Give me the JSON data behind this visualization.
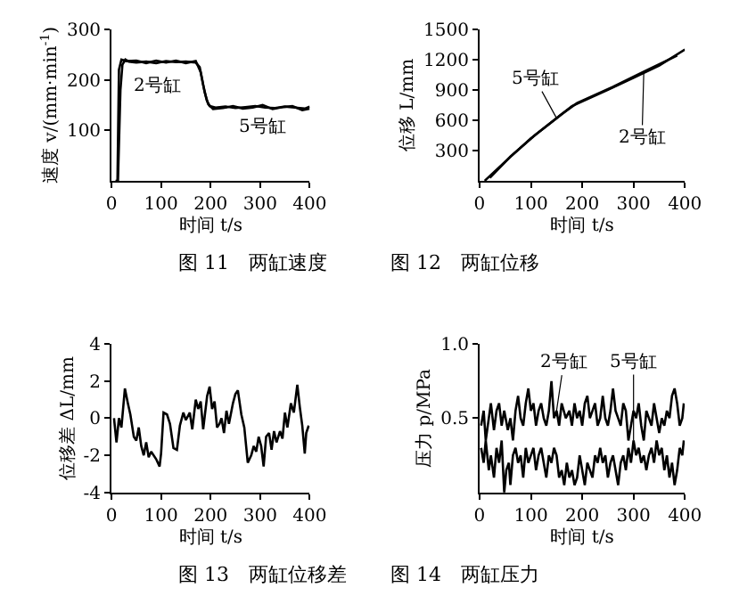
{
  "chart_data": [
    {
      "type": "line",
      "title": "图 11　两缸速度",
      "xlabel": "时间 t/s",
      "ylabel": "速度 v/(mm·min$^{-1}$)",
      "xlim": [
        0,
        400
      ],
      "xticks": [
        0,
        100,
        200,
        300,
        400
      ],
      "ylim": [
        0,
        300
      ],
      "yticks": [
        100,
        200,
        300
      ],
      "grid": false,
      "series": [
        {
          "name": "2号缸",
          "color": "#000000",
          "x": [
            10,
            13,
            18,
            22,
            28,
            35,
            50,
            70,
            90,
            110,
            130,
            150,
            170,
            178,
            185,
            192,
            198,
            210,
            230,
            250,
            270,
            290,
            310,
            330,
            350,
            370,
            390,
            400
          ],
          "values": [
            0,
            0,
            180,
            230,
            240,
            236,
            234,
            236,
            233,
            237,
            235,
            236,
            234,
            225,
            190,
            160,
            148,
            145,
            147,
            144,
            146,
            148,
            145,
            144,
            147,
            145,
            143,
            147
          ]
        },
        {
          "name": "5号缸",
          "color": "#000000",
          "x": [
            8,
            12,
            15,
            20,
            30,
            50,
            70,
            90,
            110,
            130,
            150,
            170,
            180,
            188,
            195,
            205,
            225,
            245,
            265,
            285,
            305,
            325,
            345,
            365,
            385,
            400
          ],
          "values": [
            0,
            0,
            220,
            240,
            237,
            238,
            233,
            238,
            234,
            238,
            233,
            237,
            215,
            175,
            152,
            142,
            144,
            148,
            143,
            145,
            150,
            142,
            146,
            148,
            140,
            143
          ]
        }
      ]
    },
    {
      "type": "line",
      "title": "图 12　两缸位移",
      "xlabel": "时间 t/s",
      "ylabel": "位移 L/mm",
      "xlim": [
        0,
        400
      ],
      "xticks": [
        0,
        100,
        200,
        300,
        400
      ],
      "ylim": [
        0,
        1500
      ],
      "yticks": [
        300,
        600,
        900,
        1200,
        1500
      ],
      "grid": false,
      "series": [
        {
          "name": "5号缸",
          "color": "#000000",
          "x": [
            10,
            50,
            100,
            150,
            180,
            250,
            300,
            350,
            400
          ],
          "values": [
            0,
            190,
            420,
            620,
            740,
            900,
            1020,
            1140,
            1300
          ]
        },
        {
          "name": "2号缸",
          "color": "#000000",
          "x": [
            20,
            60,
            110,
            160,
            190,
            260,
            320,
            385
          ],
          "values": [
            30,
            240,
            460,
            660,
            770,
            930,
            1080,
            1240
          ]
        }
      ]
    },
    {
      "type": "line",
      "title": "图 13　两缸位移差",
      "xlabel": "时间 t/s",
      "ylabel": "位移差 ΔL/mm",
      "xlim": [
        0,
        400
      ],
      "xticks": [
        0,
        100,
        200,
        300,
        400
      ],
      "ylim": [
        -4,
        4
      ],
      "yticks": [
        -4,
        -2,
        0,
        2,
        4
      ],
      "grid": false,
      "series": [
        {
          "color": "#000000",
          "x": [
            5,
            10,
            15,
            20,
            27,
            33,
            38,
            45,
            50,
            55,
            60,
            65,
            70,
            75,
            80,
            90,
            97,
            100,
            105,
            112,
            118,
            125,
            132,
            138,
            145,
            150,
            158,
            163,
            170,
            175,
            180,
            185,
            193,
            198,
            203,
            208,
            213,
            218,
            222,
            227,
            232,
            237,
            245,
            250,
            255,
            262,
            268,
            275,
            282,
            287,
            292,
            297,
            302,
            307,
            312,
            318,
            323,
            328,
            333,
            340,
            345,
            350,
            355,
            362,
            368,
            375,
            380,
            385,
            390,
            393,
            398
          ],
          "values": [
            0,
            -1.3,
            0,
            -0.5,
            1.6,
            0.8,
            0.2,
            -1.0,
            -1.2,
            -0.5,
            -1.5,
            -2.0,
            -1.3,
            -2.1,
            -1.8,
            -2.2,
            -2.6,
            -1.9,
            0.3,
            0.2,
            -0.3,
            -1.6,
            -1.7,
            -0.4,
            0.3,
            -0.1,
            0.3,
            -0.6,
            1.0,
            0.5,
            0.9,
            -0.6,
            1.2,
            1.7,
            0.5,
            0.9,
            -0.5,
            -0.3,
            0,
            -0.8,
            0.4,
            -0.3,
            0.8,
            1.3,
            1.5,
            0.2,
            -0.5,
            -2.4,
            -2.0,
            -1.5,
            -1.8,
            -1.0,
            -1.5,
            -2.6,
            -1.0,
            -0.8,
            -1.7,
            -0.7,
            -1.3,
            -0.7,
            -1.1,
            0.3,
            -0.5,
            0.8,
            0.3,
            1.8,
            0.6,
            -0.4,
            -1.9,
            -0.8,
            -0.4
          ]
        }
      ]
    },
    {
      "type": "line",
      "title": "图 14　两缸压力",
      "xlabel": "时间 t/s",
      "ylabel": "压力 p/MPa",
      "xlim": [
        0,
        400
      ],
      "xticks": [
        0,
        100,
        200,
        300,
        400
      ],
      "ylim": [
        0,
        1
      ],
      "yticks": [
        0.5,
        {
          "value": 1,
          "label": "1.0"
        }
      ],
      "grid": false,
      "series": [
        {
          "name": "2号缸",
          "color": "#000000",
          "x": [
            3,
            8,
            12,
            18,
            22,
            28,
            33,
            38,
            43,
            48,
            55,
            60,
            65,
            70,
            75,
            80,
            85,
            90,
            95,
            100,
            105,
            110,
            115,
            120,
            125,
            130,
            135,
            140,
            145,
            150,
            155,
            160,
            168,
            175,
            180,
            185,
            190,
            195,
            200,
            205,
            210,
            215,
            220,
            225,
            230,
            235,
            240,
            245,
            250,
            255,
            260,
            265,
            270,
            275,
            280,
            285,
            290,
            295,
            300,
            305,
            310,
            315,
            320,
            325,
            330,
            335,
            340,
            345,
            350,
            355,
            360,
            365,
            370,
            375,
            380,
            385,
            390,
            395,
            398
          ],
          "values": [
            0.45,
            0.55,
            0.35,
            0.5,
            0.6,
            0.42,
            0.55,
            0.6,
            0.45,
            0.55,
            0.42,
            0.5,
            0.35,
            0.55,
            0.65,
            0.5,
            0.45,
            0.6,
            0.7,
            0.55,
            0.6,
            0.45,
            0.55,
            0.6,
            0.5,
            0.45,
            0.55,
            0.75,
            0.5,
            0.55,
            0.45,
            0.6,
            0.5,
            0.55,
            0.45,
            0.6,
            0.5,
            0.55,
            0.45,
            0.6,
            0.65,
            0.5,
            0.55,
            0.6,
            0.45,
            0.5,
            0.65,
            0.5,
            0.45,
            0.55,
            0.7,
            0.55,
            0.5,
            0.45,
            0.6,
            0.55,
            0.35,
            0.45,
            0.55,
            0.5,
            0.6,
            0.45,
            0.35,
            0.55,
            0.5,
            0.45,
            0.6,
            0.5,
            0.4,
            0.5,
            0.45,
            0.55,
            0.5,
            0.65,
            0.7,
            0.6,
            0.45,
            0.5,
            0.6
          ]
        },
        {
          "name": "5号缸",
          "color": "#000000",
          "x": [
            3,
            8,
            12,
            18,
            22,
            28,
            33,
            38,
            43,
            48,
            52,
            57,
            60,
            65,
            70,
            75,
            80,
            85,
            90,
            95,
            100,
            105,
            110,
            115,
            120,
            125,
            130,
            135,
            140,
            145,
            150,
            155,
            160,
            165,
            170,
            175,
            180,
            185,
            190,
            195,
            200,
            205,
            210,
            215,
            220,
            225,
            230,
            235,
            240,
            245,
            250,
            255,
            260,
            265,
            270,
            275,
            280,
            285,
            290,
            295,
            300,
            305,
            310,
            315,
            320,
            325,
            330,
            335,
            340,
            345,
            350,
            355,
            360,
            365,
            370,
            375,
            380,
            385,
            390,
            395,
            398
          ],
          "values": [
            0.3,
            0.2,
            0.35,
            0.15,
            0.25,
            0.1,
            0.3,
            0.2,
            0.35,
            0.0,
            0.15,
            0.2,
            0.05,
            0.25,
            0.3,
            0.2,
            0.25,
            0.1,
            0.3,
            0.2,
            0.25,
            0.3,
            0.15,
            0.25,
            0.3,
            0.2,
            0.1,
            0.25,
            0.2,
            0.3,
            0.25,
            0.1,
            0.15,
            0.05,
            0.2,
            0.1,
            0.15,
            0.05,
            0.1,
            0.25,
            0.15,
            0.05,
            0.2,
            0.15,
            0.1,
            0.25,
            0.2,
            0.3,
            0.2,
            0.25,
            0.1,
            0.2,
            0.25,
            0.15,
            0.05,
            0.2,
            0.25,
            0.15,
            0.3,
            0.2,
            0.35,
            0.25,
            0.3,
            0.2,
            0.25,
            0.15,
            0.25,
            0.3,
            0.2,
            0.35,
            0.25,
            0.3,
            0.15,
            0.25,
            0.1,
            0.2,
            0.05,
            0.15,
            0.3,
            0.25,
            0.35
          ]
        }
      ]
    }
  ]
}
